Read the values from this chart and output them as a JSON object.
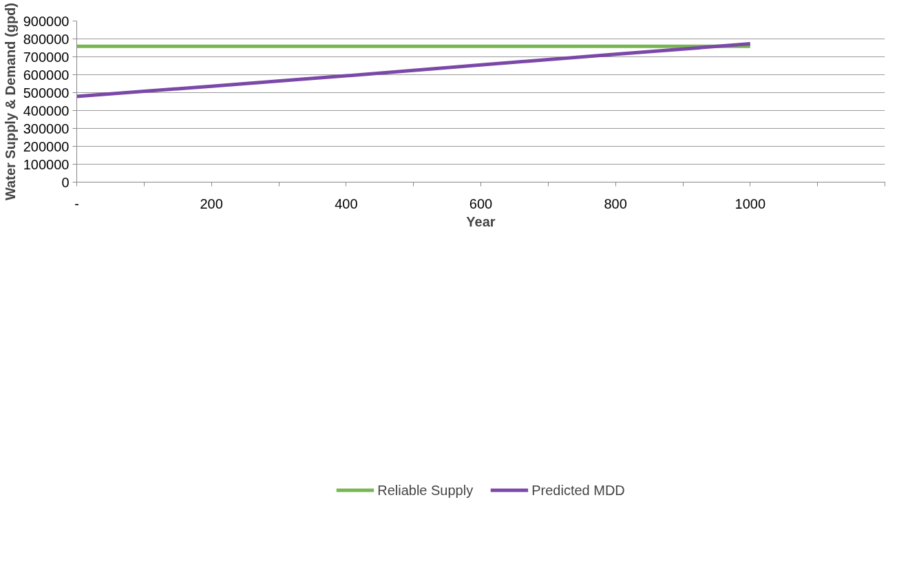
{
  "chart_data": {
    "type": "line",
    "xlabel": "Year",
    "ylabel": "Water Supply & Demand (gpd)",
    "x": [
      0,
      200,
      400,
      600,
      800,
      1000
    ],
    "series": [
      {
        "name": "Reliable Supply",
        "color": "#77b553",
        "values": [
          759000,
          759000,
          759000,
          759000,
          759000,
          759000
        ]
      },
      {
        "name": "Predicted MDD",
        "color": "#7b48a8",
        "values": [
          479000,
          536000,
          594000,
          655000,
          714000,
          773000
        ]
      }
    ],
    "xlim": [
      0,
      1200
    ],
    "xticks": [
      {
        "value": 0,
        "label": "-"
      },
      {
        "value": 100,
        "label": null
      },
      200,
      {
        "value": 300,
        "label": null
      },
      400,
      {
        "value": 500,
        "label": null
      },
      600,
      {
        "value": 700,
        "label": null
      },
      800,
      {
        "value": 900,
        "label": null
      },
      1000,
      {
        "value": 1100,
        "label": null
      },
      {
        "value": 1200,
        "label": null
      }
    ],
    "ylim": [
      0,
      900000
    ],
    "yticks": [
      0,
      100000,
      200000,
      300000,
      400000,
      500000,
      600000,
      700000,
      800000,
      900000
    ],
    "grid": "y",
    "legend": "bottom",
    "marker": "none",
    "line_style": "solid"
  }
}
